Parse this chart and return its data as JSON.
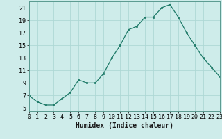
{
  "x": [
    0,
    1,
    2,
    3,
    4,
    5,
    6,
    7,
    8,
    9,
    10,
    11,
    12,
    13,
    14,
    15,
    16,
    17,
    18,
    19,
    20,
    21,
    22,
    23
  ],
  "y": [
    7,
    6,
    5.5,
    5.5,
    6.5,
    7.5,
    9.5,
    9,
    9,
    10.5,
    13,
    15,
    17.5,
    18,
    19.5,
    19.5,
    21,
    21.5,
    19.5,
    17,
    15,
    13,
    11.5,
    10
  ],
  "line_color": "#1e7a68",
  "marker_color": "#1e7a68",
  "bg_color": "#ceecea",
  "grid_color": "#aed8d5",
  "xlabel": "Humidex (Indice chaleur)",
  "xlim": [
    0,
    23
  ],
  "ylim": [
    4.5,
    22
  ],
  "yticks": [
    5,
    7,
    9,
    11,
    13,
    15,
    17,
    19,
    21
  ],
  "xticks": [
    0,
    1,
    2,
    3,
    4,
    5,
    6,
    7,
    8,
    9,
    10,
    11,
    12,
    13,
    14,
    15,
    16,
    17,
    18,
    19,
    20,
    21,
    22,
    23
  ],
  "xlabel_fontsize": 7.0,
  "tick_fontsize": 6.0
}
